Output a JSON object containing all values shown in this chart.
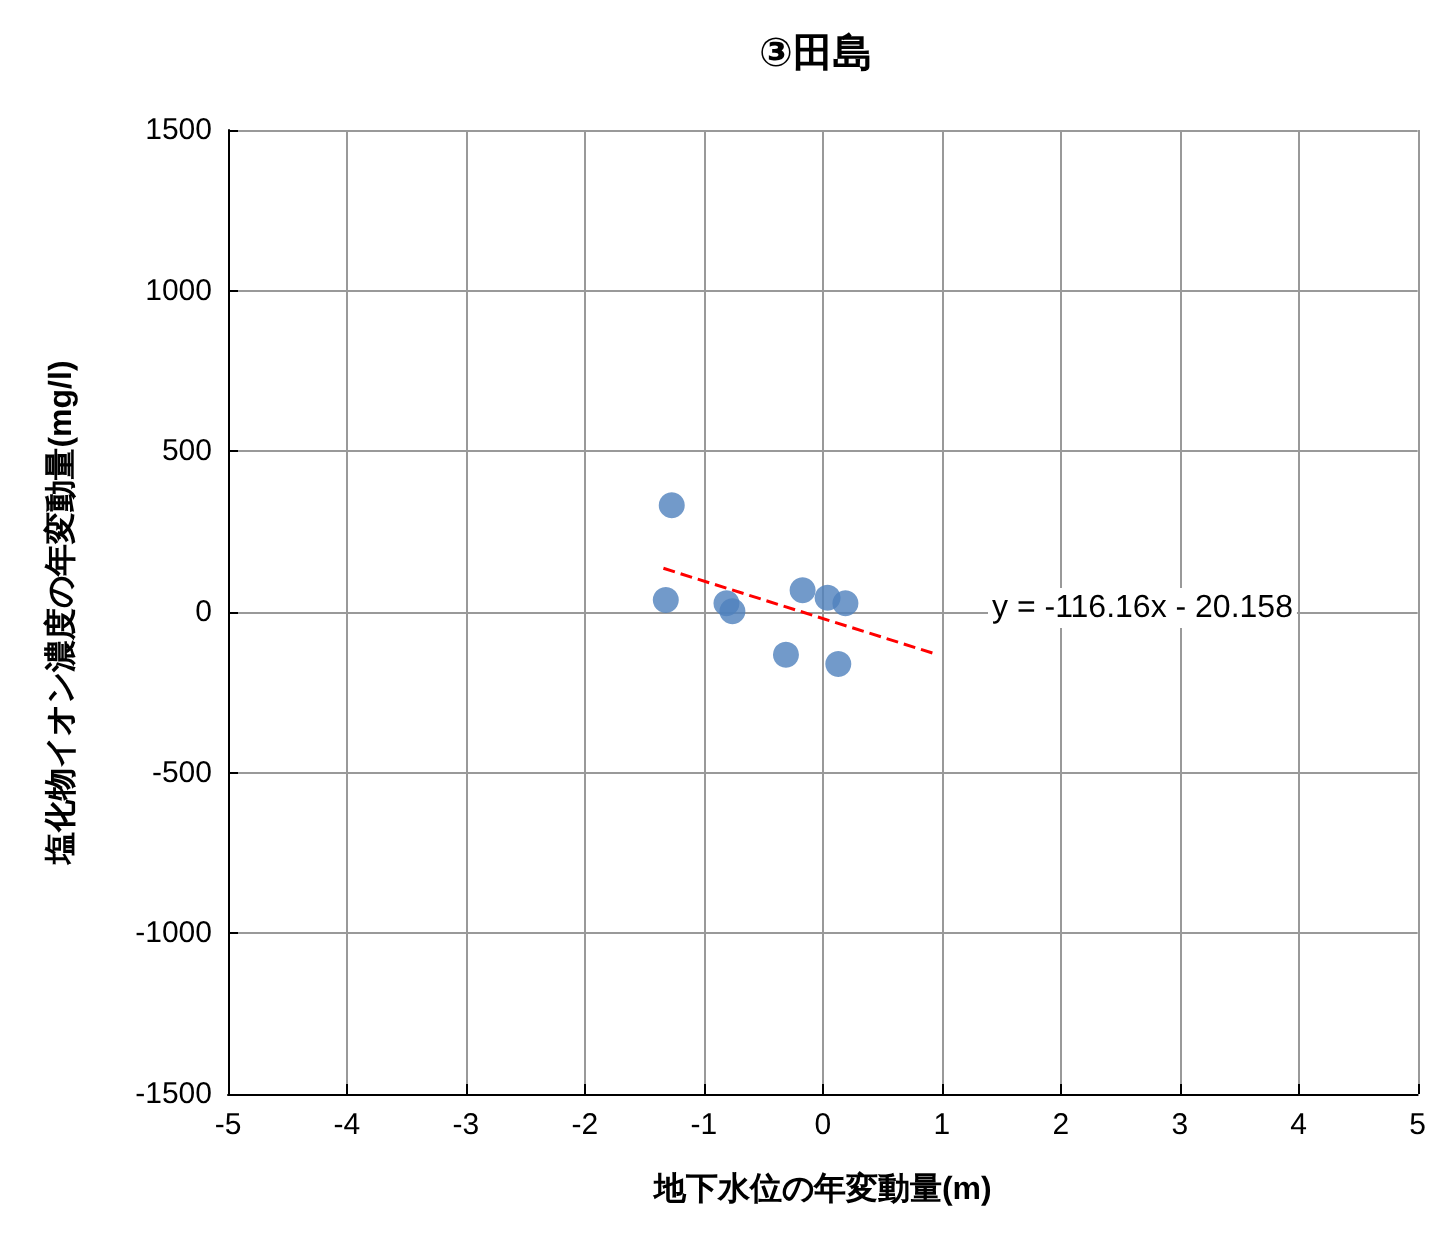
{
  "chart_data": {
    "type": "scatter",
    "title": "③田島",
    "xlabel": "地下水位の年変動量(m)",
    "ylabel": "塩化物イオン濃度の年変動量(mg/l)",
    "xlim": [
      -5,
      5
    ],
    "xticks": [
      -5,
      -4,
      -3,
      -2,
      -1,
      0,
      1,
      2,
      3,
      4,
      5
    ],
    "ylim": [
      -1500,
      1500
    ],
    "yticks": [
      -1500,
      -1000,
      -500,
      0,
      500,
      1000,
      1500
    ],
    "grid": true,
    "series": [
      {
        "type": "scatter",
        "color": "#4f81bd",
        "marker": "circle",
        "x": [
          -1.27,
          -1.32,
          -0.81,
          -0.76,
          -0.31,
          -0.17,
          0.04,
          0.19,
          0.13
        ],
        "values": [
          332,
          37,
          27,
          2,
          -133,
          68,
          44,
          27,
          -162
        ]
      },
      {
        "type": "line",
        "color": "#ff0000",
        "marker": "none",
        "line_style": "dashed",
        "x": [
          -1.34,
          0.95
        ],
        "values": [
          136,
          -131
        ]
      }
    ],
    "annotations": [
      "y = -116.16x - 20.158"
    ]
  }
}
